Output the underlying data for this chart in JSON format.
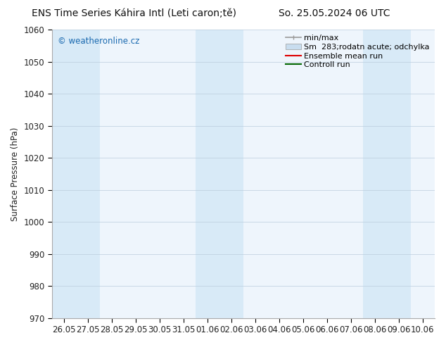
{
  "title_left": "ENS Time Series Káhira Intl (Leti caron;tě)",
  "title_right": "So. 25.05.2024 06 UTC",
  "ylabel": "Surface Pressure (hPa)",
  "ylim": [
    970,
    1060
  ],
  "yticks": [
    970,
    980,
    990,
    1000,
    1010,
    1020,
    1030,
    1040,
    1050,
    1060
  ],
  "xtick_labels": [
    "26.05",
    "27.05",
    "28.05",
    "29.05",
    "30.05",
    "31.05",
    "01.06",
    "02.06",
    "03.06",
    "04.06",
    "05.06",
    "06.06",
    "07.06",
    "08.06",
    "09.06",
    "10.06"
  ],
  "shaded_indices": [
    0,
    1,
    6,
    7,
    13,
    14
  ],
  "shaded_color": "#d8eaf7",
  "watermark_text": "© weatheronline.cz",
  "watermark_color": "#1a6ab0",
  "legend_labels": [
    "min/max",
    "Sm  283;rodatn acute; odchylka",
    "Ensemble mean run",
    "Controll run"
  ],
  "legend_minmax_color": "#999999",
  "legend_sm_color": "#c8ddef",
  "legend_ens_color": "#dd0000",
  "legend_ctrl_color": "#006600",
  "bg_color": "#ffffff",
  "plot_bg_color": "#eef5fc",
  "spine_color": "#aaaaaa",
  "grid_color": "#bbccdd",
  "tick_color": "#222222",
  "font_size": 8.5,
  "title_font_size": 10
}
